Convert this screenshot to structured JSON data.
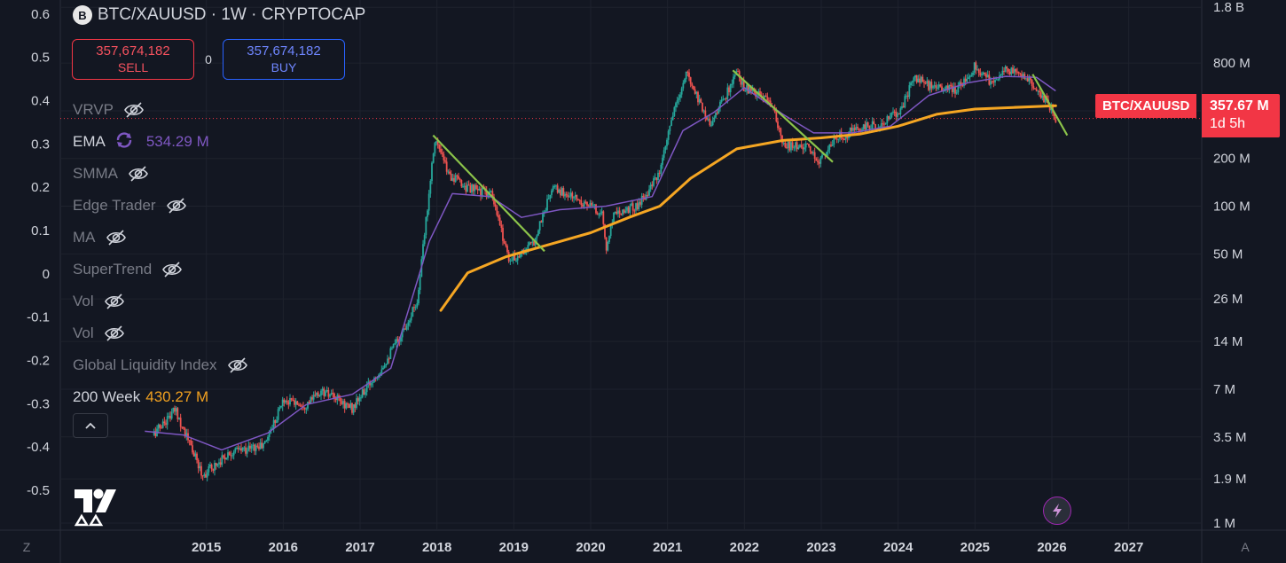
{
  "header": {
    "logo_letter": "B",
    "title": "BTC/XAUUSD · 1W · CRYPTOCAP"
  },
  "trade": {
    "sell_price": "357,674,182",
    "sell_label": "SELL",
    "buy_price": "357,674,182",
    "buy_label": "BUY",
    "spread": "0"
  },
  "legend": [
    {
      "name": "VRVP",
      "value": "",
      "hidden": true
    },
    {
      "name": "EMA",
      "value": "534.29 M",
      "hidden": false,
      "value_color": "#7e57c2",
      "loading": true
    },
    {
      "name": "SMMA",
      "value": "",
      "hidden": true
    },
    {
      "name": "Edge Trader",
      "value": "",
      "hidden": true
    },
    {
      "name": "MA",
      "value": "",
      "hidden": true
    },
    {
      "name": "SuperTrend",
      "value": "",
      "hidden": true
    },
    {
      "name": "Vol",
      "value": "",
      "hidden": true
    },
    {
      "name": "Vol",
      "value": "",
      "hidden": true
    },
    {
      "name": "Global Liquidity Index",
      "value": "",
      "hidden": true
    },
    {
      "name": "200 Week",
      "value": "430.27 M",
      "hidden": false,
      "value_color": "#f0a020"
    }
  ],
  "price_tag": {
    "symbol": "BTC/XAUUSD",
    "price": "357.67 M",
    "countdown": "1d 5h"
  },
  "bottom": {
    "left_button": "Z",
    "right_button": "A"
  },
  "colors": {
    "background": "#131722",
    "up": "#26a69a",
    "down": "#ef5350",
    "ema": "#7e57c2",
    "ma200": "#f5a623",
    "trendline": "#8bc34a",
    "price_tag": "#f23645"
  },
  "chart_data": {
    "type": "candlestick",
    "symbol": "BTC/XAUUSD",
    "interval": "1W",
    "exchange": "CRYPTOCAP",
    "left_axis": {
      "ticks": [
        "0.6",
        "0.5",
        "0.4",
        "0.3",
        "0.2",
        "0.1",
        "0",
        "-0.1",
        "-0.2",
        "-0.3",
        "-0.4",
        "-0.5"
      ],
      "range": [
        -0.58,
        0.62
      ]
    },
    "right_axis": {
      "scale": "log",
      "ticks": [
        "1.8 B",
        "800 M",
        "400 M",
        "200 M",
        "100 M",
        "50 M",
        "26 M",
        "14 M",
        "7 M",
        "3.5 M",
        "1.9 M",
        "1 M"
      ],
      "tick_values": [
        1800000000,
        800000000,
        400000000,
        200000000,
        100000000,
        50000000,
        26000000,
        14000000,
        7000000,
        3500000,
        1900000,
        1000000
      ],
      "range": [
        1000000,
        1900000000
      ]
    },
    "x_axis": {
      "ticks": [
        "2015",
        "2016",
        "2017",
        "2018",
        "2019",
        "2020",
        "2021",
        "2022",
        "2023",
        "2024",
        "2025",
        "2026",
        "2027"
      ],
      "range": [
        2013.1,
        2027.95
      ]
    },
    "price_anchors": [
      [
        2014.3,
        3.6
      ],
      [
        2014.6,
        5.2
      ],
      [
        2014.95,
        2.0
      ],
      [
        2015.3,
        2.8
      ],
      [
        2015.75,
        3.1
      ],
      [
        2016.0,
        6.0
      ],
      [
        2016.3,
        5.6
      ],
      [
        2016.5,
        6.8
      ],
      [
        2016.9,
        5.3
      ],
      [
        2017.3,
        10
      ],
      [
        2017.55,
        16
      ],
      [
        2017.75,
        26
      ],
      [
        2017.97,
        270
      ],
      [
        2018.15,
        160
      ],
      [
        2018.4,
        130
      ],
      [
        2018.7,
        120
      ],
      [
        2018.95,
        45
      ],
      [
        2019.25,
        58
      ],
      [
        2019.5,
        130
      ],
      [
        2019.85,
        110
      ],
      [
        2020.15,
        90
      ],
      [
        2020.2,
        52
      ],
      [
        2020.3,
        92
      ],
      [
        2020.6,
        100
      ],
      [
        2020.9,
        160
      ],
      [
        2021.05,
        350
      ],
      [
        2021.25,
        690
      ],
      [
        2021.4,
        480
      ],
      [
        2021.55,
        330
      ],
      [
        2021.8,
        550
      ],
      [
        2021.9,
        690
      ],
      [
        2022.0,
        560
      ],
      [
        2022.35,
        450
      ],
      [
        2022.5,
        240
      ],
      [
        2022.8,
        240
      ],
      [
        2022.95,
        190
      ],
      [
        2023.2,
        270
      ],
      [
        2023.5,
        310
      ],
      [
        2023.8,
        330
      ],
      [
        2024.05,
        420
      ],
      [
        2024.2,
        650
      ],
      [
        2024.45,
        560
      ],
      [
        2024.75,
        540
      ],
      [
        2025.0,
        770
      ],
      [
        2025.2,
        610
      ],
      [
        2025.4,
        730
      ],
      [
        2025.65,
        660
      ],
      [
        2025.8,
        560
      ],
      [
        2025.95,
        440
      ],
      [
        2026.05,
        357.67
      ]
    ],
    "ema_line": [
      [
        2014.2,
        3.8
      ],
      [
        2014.7,
        3.6
      ],
      [
        2015.2,
        2.9
      ],
      [
        2015.8,
        3.7
      ],
      [
        2016.3,
        5.6
      ],
      [
        2016.9,
        6.5
      ],
      [
        2017.4,
        9.5
      ],
      [
        2017.9,
        60
      ],
      [
        2018.2,
        120
      ],
      [
        2018.7,
        115
      ],
      [
        2019.1,
        85
      ],
      [
        2019.6,
        95
      ],
      [
        2020.2,
        100
      ],
      [
        2020.8,
        115
      ],
      [
        2021.2,
        300
      ],
      [
        2021.6,
        390
      ],
      [
        2022.0,
        560
      ],
      [
        2022.5,
        380
      ],
      [
        2022.9,
        290
      ],
      [
        2023.4,
        290
      ],
      [
        2023.9,
        320
      ],
      [
        2024.4,
        500
      ],
      [
        2024.9,
        600
      ],
      [
        2025.4,
        660
      ],
      [
        2025.8,
        650
      ],
      [
        2026.05,
        534.29
      ]
    ],
    "ma200_line": [
      [
        2018.05,
        22
      ],
      [
        2018.4,
        38
      ],
      [
        2018.9,
        48
      ],
      [
        2019.5,
        58
      ],
      [
        2020.0,
        68
      ],
      [
        2020.5,
        85
      ],
      [
        2020.9,
        100
      ],
      [
        2021.3,
        150
      ],
      [
        2021.9,
        230
      ],
      [
        2022.5,
        260
      ],
      [
        2023.0,
        270
      ],
      [
        2023.5,
        285
      ],
      [
        2024.0,
        320
      ],
      [
        2024.5,
        380
      ],
      [
        2025.0,
        410
      ],
      [
        2025.5,
        420
      ],
      [
        2026.05,
        430.27
      ]
    ],
    "trendlines": [
      {
        "from": [
          2017.95,
          280
        ],
        "to": [
          2019.4,
          52
        ]
      },
      {
        "from": [
          2021.85,
          720
        ],
        "to": [
          2023.15,
          190
        ]
      },
      {
        "from": [
          2025.75,
          680
        ],
        "to": [
          2026.2,
          280
        ]
      }
    ],
    "current_price": 357674182
  }
}
